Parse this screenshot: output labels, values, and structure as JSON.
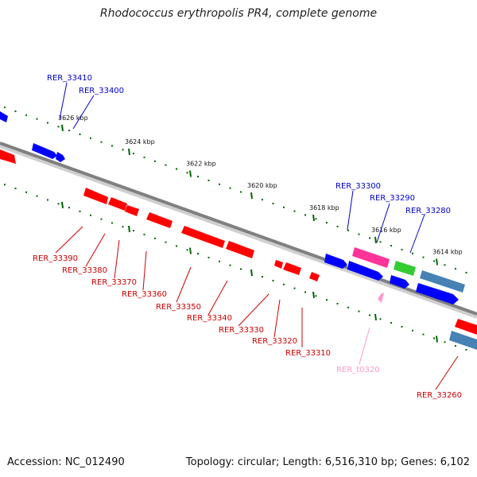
{
  "title": "Rhodococcus erythropolis PR4, complete genome",
  "footer": {
    "accession": "Accession: NC_012490",
    "summary": "Topology: circular; Length: 6,516,310 bp; Genes: 6,102"
  },
  "colors": {
    "backbone": "#808080",
    "forward_gene": "#0000ff",
    "reverse_gene": "#ff0000",
    "forward_label": "#0000cc",
    "reverse_label": "#cc0000",
    "trna_label": "#ff99cc",
    "tick": "#006400"
  },
  "ticks": [
    {
      "label": "3626 kbp"
    },
    {
      "label": "3624 kbp"
    },
    {
      "label": "3622 kbp"
    },
    {
      "label": "3620 kbp"
    },
    {
      "label": "3618 kbp"
    },
    {
      "label": "3616 kbp"
    },
    {
      "label": "3614 kbp"
    }
  ],
  "genes": [
    {
      "name": "RER_33410",
      "strand": "forward"
    },
    {
      "name": "RER_33400",
      "strand": "forward"
    },
    {
      "name": "RER_33300",
      "strand": "forward"
    },
    {
      "name": "RER_33290",
      "strand": "forward"
    },
    {
      "name": "RER_33280",
      "strand": "forward"
    },
    {
      "name": "RER_33390",
      "strand": "reverse"
    },
    {
      "name": "RER_33380",
      "strand": "reverse"
    },
    {
      "name": "RER_33370",
      "strand": "reverse"
    },
    {
      "name": "RER_33360",
      "strand": "reverse"
    },
    {
      "name": "RER_33350",
      "strand": "reverse"
    },
    {
      "name": "RER_33340",
      "strand": "reverse"
    },
    {
      "name": "RER_33330",
      "strand": "reverse"
    },
    {
      "name": "RER_33320",
      "strand": "reverse"
    },
    {
      "name": "RER_33310",
      "strand": "reverse"
    },
    {
      "name": "RER_t0320",
      "strand": "reverse",
      "type": "tRNA"
    },
    {
      "name": "RER_33260",
      "strand": "reverse"
    }
  ]
}
